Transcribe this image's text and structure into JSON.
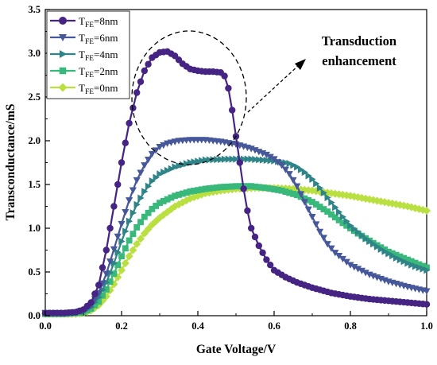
{
  "chart_data": {
    "type": "line",
    "title": "",
    "xlabel": "Gate Voltage/V",
    "ylabel": "Transconductance/mS",
    "xlim": [
      0.0,
      1.0
    ],
    "ylim": [
      0.0,
      3.5
    ],
    "xticks": [
      "0.0",
      "0.2",
      "0.4",
      "0.6",
      "0.8",
      "1.0"
    ],
    "yticks": [
      "0.0",
      "0.5",
      "1.0",
      "1.5",
      "2.0",
      "2.5",
      "3.0",
      "3.5"
    ],
    "grid": false,
    "legend_position": "top-left",
    "annotation": {
      "line1": "Transduction",
      "line2": "enhancement"
    },
    "series": [
      {
        "name": "T_FE=8nm",
        "label_main": "T",
        "label_sub": "FE",
        "label_rest": "=8nm",
        "color": "#452483",
        "marker": "circle",
        "points": [
          [
            0.0,
            0.03
          ],
          [
            0.05,
            0.03
          ],
          [
            0.08,
            0.04
          ],
          [
            0.1,
            0.07
          ],
          [
            0.12,
            0.15
          ],
          [
            0.14,
            0.35
          ],
          [
            0.16,
            0.75
          ],
          [
            0.18,
            1.25
          ],
          [
            0.2,
            1.75
          ],
          [
            0.22,
            2.2
          ],
          [
            0.24,
            2.55
          ],
          [
            0.26,
            2.8
          ],
          [
            0.28,
            2.95
          ],
          [
            0.3,
            3.01
          ],
          [
            0.32,
            3.02
          ],
          [
            0.34,
            2.97
          ],
          [
            0.36,
            2.88
          ],
          [
            0.38,
            2.82
          ],
          [
            0.4,
            2.8
          ],
          [
            0.42,
            2.79
          ],
          [
            0.44,
            2.79
          ],
          [
            0.46,
            2.78
          ],
          [
            0.47,
            2.74
          ],
          [
            0.48,
            2.6
          ],
          [
            0.49,
            2.35
          ],
          [
            0.5,
            2.05
          ],
          [
            0.51,
            1.75
          ],
          [
            0.52,
            1.45
          ],
          [
            0.53,
            1.2
          ],
          [
            0.54,
            1.0
          ],
          [
            0.56,
            0.8
          ],
          [
            0.58,
            0.64
          ],
          [
            0.6,
            0.52
          ],
          [
            0.63,
            0.44
          ],
          [
            0.66,
            0.38
          ],
          [
            0.7,
            0.32
          ],
          [
            0.75,
            0.26
          ],
          [
            0.8,
            0.22
          ],
          [
            0.85,
            0.19
          ],
          [
            0.9,
            0.17
          ],
          [
            0.95,
            0.15
          ],
          [
            1.0,
            0.13
          ]
        ]
      },
      {
        "name": "T_FE=6nm",
        "label_main": "T",
        "label_sub": "FE",
        "label_rest": "=6nm",
        "color": "#46589a",
        "marker": "triangle-down",
        "points": [
          [
            0.0,
            0.03
          ],
          [
            0.05,
            0.03
          ],
          [
            0.08,
            0.04
          ],
          [
            0.1,
            0.06
          ],
          [
            0.12,
            0.12
          ],
          [
            0.14,
            0.26
          ],
          [
            0.16,
            0.48
          ],
          [
            0.18,
            0.76
          ],
          [
            0.2,
            1.05
          ],
          [
            0.22,
            1.32
          ],
          [
            0.24,
            1.55
          ],
          [
            0.26,
            1.72
          ],
          [
            0.28,
            1.85
          ],
          [
            0.3,
            1.93
          ],
          [
            0.32,
            1.97
          ],
          [
            0.35,
            2.0
          ],
          [
            0.38,
            2.01
          ],
          [
            0.42,
            2.01
          ],
          [
            0.46,
            1.99
          ],
          [
            0.5,
            1.96
          ],
          [
            0.54,
            1.91
          ],
          [
            0.58,
            1.84
          ],
          [
            0.6,
            1.79
          ],
          [
            0.62,
            1.72
          ],
          [
            0.64,
            1.62
          ],
          [
            0.66,
            1.48
          ],
          [
            0.68,
            1.3
          ],
          [
            0.7,
            1.13
          ],
          [
            0.72,
            0.96
          ],
          [
            0.74,
            0.82
          ],
          [
            0.76,
            0.72
          ],
          [
            0.8,
            0.58
          ],
          [
            0.85,
            0.47
          ],
          [
            0.9,
            0.39
          ],
          [
            0.95,
            0.33
          ],
          [
            1.0,
            0.28
          ]
        ]
      },
      {
        "name": "T_FE=4nm",
        "label_main": "T",
        "label_sub": "FE",
        "label_rest": "=4nm",
        "color": "#2e8487",
        "marker": "triangle-right",
        "points": [
          [
            0.0,
            0.03
          ],
          [
            0.05,
            0.03
          ],
          [
            0.08,
            0.035
          ],
          [
            0.1,
            0.05
          ],
          [
            0.12,
            0.1
          ],
          [
            0.14,
            0.21
          ],
          [
            0.16,
            0.38
          ],
          [
            0.18,
            0.6
          ],
          [
            0.2,
            0.85
          ],
          [
            0.22,
            1.08
          ],
          [
            0.24,
            1.27
          ],
          [
            0.26,
            1.42
          ],
          [
            0.28,
            1.54
          ],
          [
            0.3,
            1.62
          ],
          [
            0.34,
            1.7
          ],
          [
            0.38,
            1.75
          ],
          [
            0.42,
            1.78
          ],
          [
            0.48,
            1.79
          ],
          [
            0.54,
            1.79
          ],
          [
            0.6,
            1.77
          ],
          [
            0.64,
            1.74
          ],
          [
            0.66,
            1.7
          ],
          [
            0.68,
            1.64
          ],
          [
            0.7,
            1.56
          ],
          [
            0.72,
            1.46
          ],
          [
            0.74,
            1.35
          ],
          [
            0.76,
            1.24
          ],
          [
            0.78,
            1.13
          ],
          [
            0.8,
            1.03
          ],
          [
            0.84,
            0.88
          ],
          [
            0.88,
            0.76
          ],
          [
            0.92,
            0.66
          ],
          [
            0.96,
            0.58
          ],
          [
            1.0,
            0.52
          ]
        ]
      },
      {
        "name": "T_FE=2nm",
        "label_main": "T",
        "label_sub": "FE",
        "label_rest": "=2nm",
        "color": "#38b87a",
        "marker": "square",
        "points": [
          [
            0.0,
            0.02
          ],
          [
            0.05,
            0.02
          ],
          [
            0.08,
            0.03
          ],
          [
            0.1,
            0.04
          ],
          [
            0.12,
            0.08
          ],
          [
            0.14,
            0.16
          ],
          [
            0.16,
            0.3
          ],
          [
            0.18,
            0.48
          ],
          [
            0.2,
            0.68
          ],
          [
            0.22,
            0.86
          ],
          [
            0.24,
            1.01
          ],
          [
            0.26,
            1.13
          ],
          [
            0.28,
            1.22
          ],
          [
            0.3,
            1.29
          ],
          [
            0.34,
            1.37
          ],
          [
            0.38,
            1.42
          ],
          [
            0.42,
            1.45
          ],
          [
            0.46,
            1.47
          ],
          [
            0.5,
            1.48
          ],
          [
            0.54,
            1.48
          ],
          [
            0.58,
            1.46
          ],
          [
            0.62,
            1.43
          ],
          [
            0.66,
            1.38
          ],
          [
            0.7,
            1.3
          ],
          [
            0.74,
            1.19
          ],
          [
            0.78,
            1.06
          ],
          [
            0.82,
            0.94
          ],
          [
            0.86,
            0.83
          ],
          [
            0.9,
            0.73
          ],
          [
            0.95,
            0.64
          ],
          [
            1.0,
            0.55
          ]
        ]
      },
      {
        "name": "T_FE=0nm",
        "label_main": "T",
        "label_sub": "FE",
        "label_rest": "=0nm",
        "color": "#b9e040",
        "marker": "diamond",
        "points": [
          [
            0.0,
            0.02
          ],
          [
            0.05,
            0.02
          ],
          [
            0.08,
            0.02
          ],
          [
            0.1,
            0.03
          ],
          [
            0.12,
            0.06
          ],
          [
            0.14,
            0.12
          ],
          [
            0.16,
            0.22
          ],
          [
            0.18,
            0.36
          ],
          [
            0.2,
            0.52
          ],
          [
            0.22,
            0.68
          ],
          [
            0.24,
            0.82
          ],
          [
            0.26,
            0.94
          ],
          [
            0.28,
            1.04
          ],
          [
            0.3,
            1.12
          ],
          [
            0.34,
            1.25
          ],
          [
            0.38,
            1.34
          ],
          [
            0.42,
            1.4
          ],
          [
            0.46,
            1.43
          ],
          [
            0.5,
            1.45
          ],
          [
            0.55,
            1.46
          ],
          [
            0.6,
            1.46
          ],
          [
            0.65,
            1.45
          ],
          [
            0.7,
            1.43
          ],
          [
            0.75,
            1.4
          ],
          [
            0.8,
            1.37
          ],
          [
            0.85,
            1.33
          ],
          [
            0.9,
            1.29
          ],
          [
            0.95,
            1.25
          ],
          [
            1.0,
            1.2
          ]
        ]
      }
    ]
  }
}
